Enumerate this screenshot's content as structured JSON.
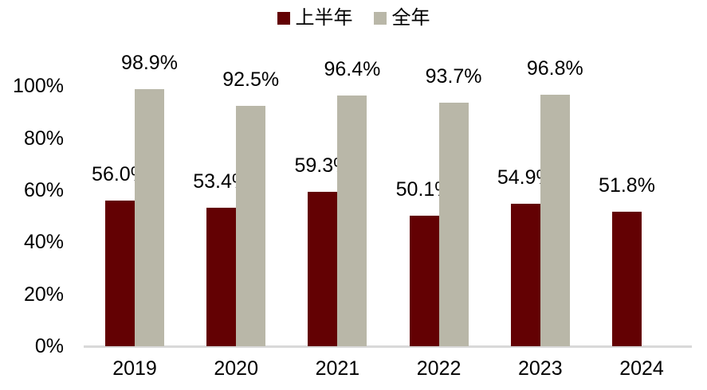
{
  "chart_data": {
    "type": "bar",
    "title": "",
    "categories": [
      "2019",
      "2020",
      "2021",
      "2022",
      "2023",
      "2024"
    ],
    "series": [
      {
        "name": "上半年",
        "color": "#630103",
        "values": [
          56.0,
          53.4,
          59.3,
          50.1,
          54.9,
          51.8
        ],
        "labels": [
          "56.0%",
          "53.4%",
          "59.3%",
          "50.1%",
          "54.9%",
          "51.8%"
        ]
      },
      {
        "name": "全年",
        "color": "#B9B7A8",
        "values": [
          98.9,
          92.5,
          96.4,
          93.7,
          96.8,
          null
        ],
        "labels": [
          "98.9%",
          "92.5%",
          "96.4%",
          "93.7%",
          "96.8%",
          null
        ]
      }
    ],
    "yticks": [
      {
        "value": 0,
        "label": "0%"
      },
      {
        "value": 20,
        "label": "20%"
      },
      {
        "value": 40,
        "label": "40%"
      },
      {
        "value": 60,
        "label": "60%"
      },
      {
        "value": 80,
        "label": "80%"
      },
      {
        "value": 100,
        "label": "100%"
      }
    ],
    "ylim": [
      0,
      100
    ],
    "xlabel": "",
    "ylabel": "",
    "grid": false,
    "legend_position": "top",
    "axis_line_color": "#D9D9D9",
    "text_color": "#000000",
    "background_color": "#FFFFFF"
  }
}
